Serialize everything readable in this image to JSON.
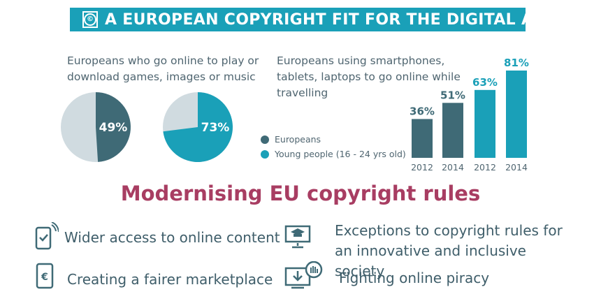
{
  "banner": {
    "title": "A EUROPEAN COPYRIGHT FIT FOR THE DIGITAL AGE"
  },
  "charts": {
    "left_caption": "Europeans who go online to play or download games, images or music",
    "right_caption": "Europeans using smartphones, tablets, laptops to go online while travelling"
  },
  "legend": {
    "europeans": "Europeans",
    "young": "Young people (16 - 24 yrs old)"
  },
  "colors": {
    "europeans": "#3f6a76",
    "young": "#1aa0b8",
    "pie_bg": "#d0dbe0",
    "subtitle": "#a83d62",
    "banner": "#1aa0b8"
  },
  "chart_data": [
    {
      "type": "pie",
      "title": "Europeans who go online to play or download games, images or music",
      "slices": [
        {
          "name": "Europeans",
          "value": 49,
          "label": "49%"
        },
        {
          "name": "Young people (16 - 24 yrs old)",
          "value": 73,
          "label": "73%"
        }
      ]
    },
    {
      "type": "bar",
      "title": "Europeans using smartphones, tablets, laptops to go online while travelling",
      "categories": [
        "2012",
        "2014",
        "2012",
        "2014"
      ],
      "series": [
        {
          "name": "Europeans",
          "values": [
            36,
            51,
            null,
            null
          ]
        },
        {
          "name": "Young people (16 - 24 yrs old)",
          "values": [
            null,
            null,
            63,
            81
          ]
        }
      ],
      "labels": [
        "36%",
        "51%",
        "63%",
        "81%"
      ],
      "ylim": [
        0,
        81
      ]
    }
  ],
  "subtitle": "Modernising EU copyright rules",
  "features": [
    {
      "icon": "tablet-check-icon",
      "text": "Wider access to online content"
    },
    {
      "icon": "graduation-screen-icon",
      "text": "Exceptions to copyright rules for an innovative and inclusive society"
    },
    {
      "icon": "euro-phone-icon",
      "text": "Creating a fairer marketplace"
    },
    {
      "icon": "download-stop-icon",
      "text": "Fighting online piracy"
    }
  ]
}
